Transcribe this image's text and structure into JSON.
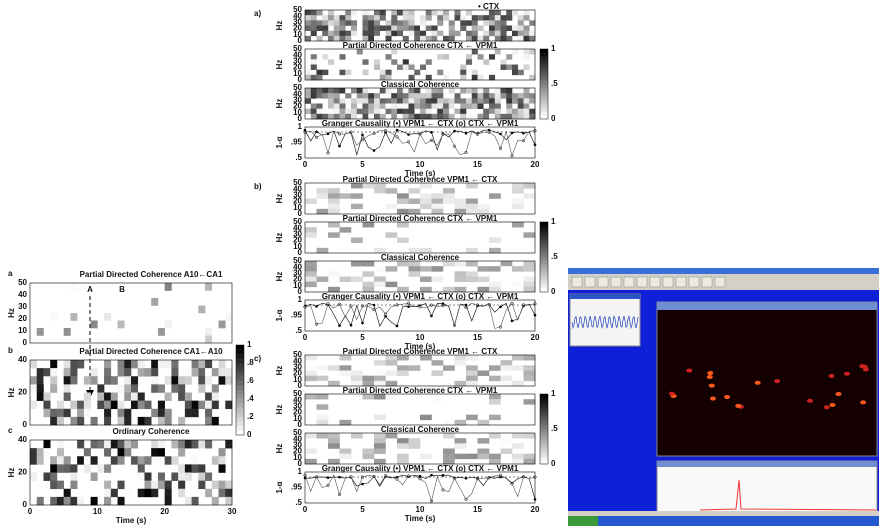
{
  "left_figure": {
    "panels": [
      {
        "letter": "a",
        "title": "Partial Directed Coherence  A10←CA1",
        "y_label": "Hz",
        "y_ticks": [
          "50",
          "40",
          "30",
          "20",
          "10",
          "0"
        ],
        "markers": [
          "A",
          "B"
        ]
      },
      {
        "letter": "b",
        "title": "Partial Directed Coherence  CA1←A10",
        "y_label": "Hz",
        "y_ticks": [
          "40",
          "20",
          "0"
        ]
      },
      {
        "letter": "c",
        "title": "Ordinary Coherence",
        "y_label": "Hz",
        "y_ticks": [
          "40",
          "20",
          "0"
        ]
      }
    ],
    "colorbar_ticks": [
      "1",
      ".8",
      ".6",
      ".4",
      ".2",
      "0"
    ],
    "x_ticks": [
      "0",
      "10",
      "20",
      "30"
    ],
    "x_label": "Time (s)"
  },
  "middle_figure": {
    "sections": [
      {
        "letter": "a)",
        "rows": [
          {
            "title": "• CTX",
            "y_label": "Hz",
            "y_ticks": [
              "50",
              "40",
              "30",
              "20",
              "10",
              "0"
            ]
          },
          {
            "title": "Partial Directed Coherence  CTX ← VPM1",
            "y_label": "Hz",
            "y_ticks": [
              "50",
              "40",
              "30",
              "20",
              "10",
              "0"
            ]
          },
          {
            "title": "Classical Coherence",
            "y_label": "Hz",
            "y_ticks": [
              "50",
              "40",
              "30",
              "20",
              "10",
              "0"
            ]
          },
          {
            "title": "Granger Causality  (•) VPM1 ← CTX  (o) CTX ← VPM1",
            "y_label": "1-α",
            "y_ticks": [
              "1",
              ".95",
              ".5"
            ]
          }
        ],
        "colorbar_ticks": [
          "1",
          ".5",
          "0"
        ],
        "x_ticks": [
          "0",
          "5",
          "10",
          "15",
          "20"
        ],
        "x_label": "Time (s)"
      },
      {
        "letter": "b)",
        "rows": [
          {
            "title": "Partial Directed Coherence  VPM1 ← CTX",
            "y_label": "Hz",
            "y_ticks": [
              "50",
              "40",
              "30",
              "20",
              "10",
              "0"
            ]
          },
          {
            "title": "Partial Directed Coherence  CTX ← VPM1",
            "y_label": "Hz",
            "y_ticks": [
              "50",
              "40",
              "30",
              "20",
              "10",
              "0"
            ]
          },
          {
            "title": "Classical Coherence",
            "y_label": "Hz",
            "y_ticks": [
              "50",
              "40",
              "30",
              "20",
              "10",
              "0"
            ]
          },
          {
            "title": "Granger Causality  (•) VPM1 ← CTX  (o) CTX ← VPM1",
            "y_label": "1-α",
            "y_ticks": [
              "1",
              ".95",
              ".5"
            ]
          }
        ],
        "colorbar_ticks": [
          "1",
          ".5",
          "0"
        ],
        "x_ticks": [
          "0",
          "5",
          "10",
          "15",
          "20"
        ],
        "x_label": "Time (s)"
      },
      {
        "letter": "c)",
        "rows": [
          {
            "title": "Partial Directed Coherence  VPM1 ← CTX",
            "y_label": "Hz",
            "y_ticks": [
              "50",
              "40",
              "30",
              "20",
              "10",
              "0"
            ]
          },
          {
            "title": "Partial Directed Coherence  CTX ← VPM1",
            "y_label": "Hz",
            "y_ticks": [
              "50",
              "40",
              "30",
              "20",
              "10",
              "0"
            ]
          },
          {
            "title": "Classical Coherence",
            "y_label": "Hz",
            "y_ticks": [
              "50",
              "40",
              "30",
              "20",
              "10",
              "0"
            ]
          },
          {
            "title": "Granger Causality  (•) VPM1 ← CTX  (o) CTX ← VPM1",
            "y_label": "1-α",
            "y_ticks": [
              "1",
              ".95",
              ".5"
            ]
          }
        ],
        "colorbar_ticks": [
          "1",
          ".5",
          "0"
        ],
        "x_ticks": [
          "0",
          "5",
          "10",
          "15",
          "20"
        ],
        "x_label": "Time (s)"
      }
    ]
  }
}
